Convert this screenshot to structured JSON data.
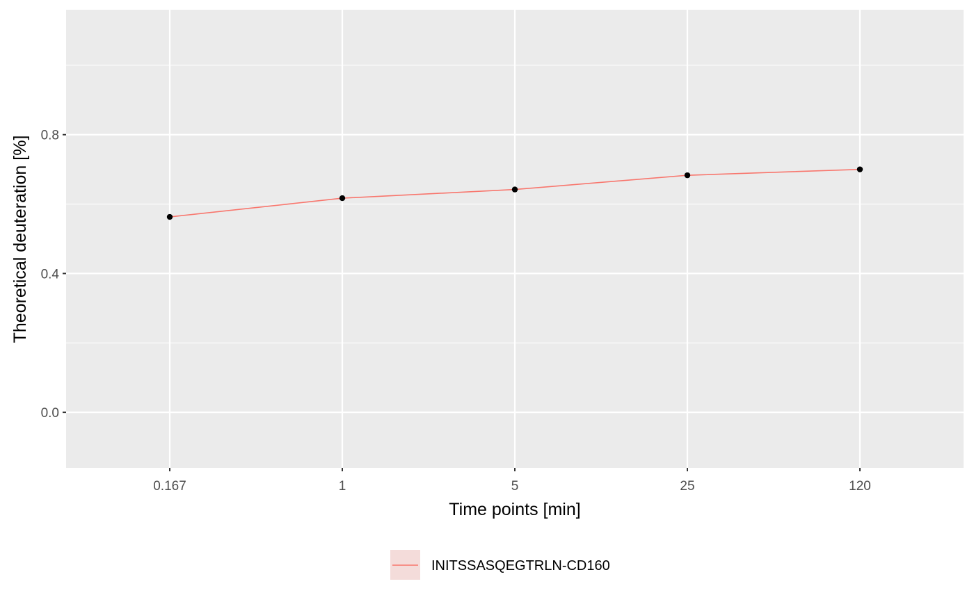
{
  "chart_data": {
    "type": "line",
    "title": "",
    "xlabel": "Time points [min]",
    "ylabel": "Theoretical deuteration [%]",
    "x_scale": "log",
    "x": [
      0.167,
      1,
      5,
      25,
      120
    ],
    "x_tick_labels": [
      "0.167",
      "1",
      "5",
      "25",
      "120"
    ],
    "y_ticks": [
      0.0,
      0.4,
      0.8
    ],
    "y_tick_labels": [
      "0.0",
      "0.4",
      "0.8"
    ],
    "ylim": [
      -0.16,
      1.16
    ],
    "grid": true,
    "legend_position": "bottom",
    "series": [
      {
        "name": "INITSSASQEGTRLN-CD160",
        "values": [
          0.563,
          0.617,
          0.642,
          0.683,
          0.7
        ],
        "color": "#F8766D",
        "marker_color": "#000000"
      }
    ],
    "panel_background": "#EBEBEB",
    "grid_color": "#FFFFFF",
    "legend_key_fill": "#F4DCDA"
  }
}
